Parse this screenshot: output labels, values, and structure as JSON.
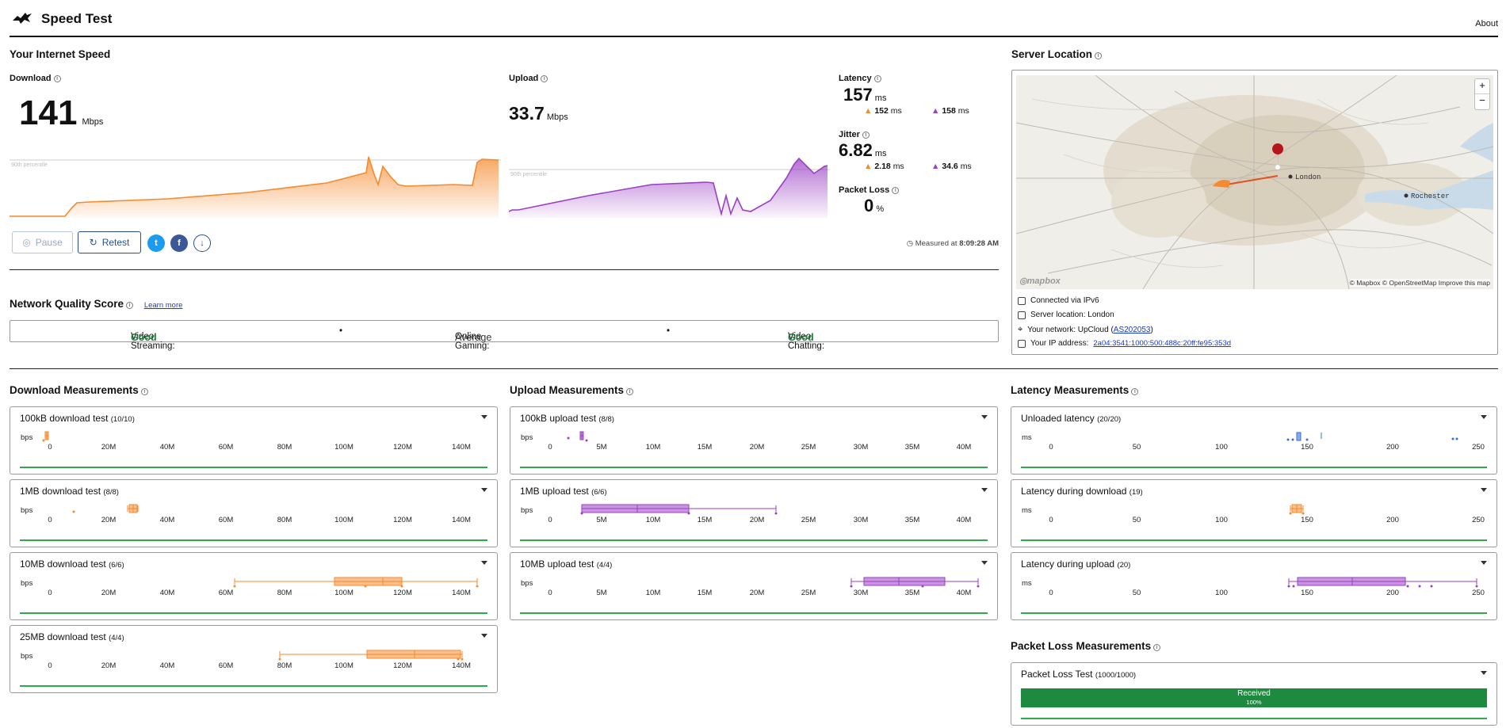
{
  "app": {
    "title": "Speed Test",
    "about": "About"
  },
  "speed": {
    "section_title": "Your Internet Speed",
    "download": {
      "label": "Download",
      "value": "141",
      "unit": "Mbps",
      "percentile_label": "90th percentile"
    },
    "upload": {
      "label": "Upload",
      "value": "33.7",
      "unit": "Mbps",
      "percentile_label": "90th percentile"
    },
    "latency": {
      "label": "Latency",
      "value": "157",
      "unit": "ms",
      "down": "152",
      "down_unit": "ms",
      "up": "158",
      "up_unit": "ms"
    },
    "jitter": {
      "label": "Jitter",
      "value": "6.82",
      "unit": "ms",
      "down": "2.18",
      "down_unit": "ms",
      "up": "34.6",
      "up_unit": "ms"
    },
    "packet_loss": {
      "label": "Packet Loss",
      "value": "0",
      "unit": "%"
    },
    "pause_label": "Pause",
    "retest_label": "Retest",
    "measured_label": "Measured at",
    "measured_time": "8:09:28 AM"
  },
  "quality": {
    "title": "Network Quality Score",
    "learn_more": "Learn more",
    "items": [
      {
        "label": "Video Streaming:",
        "value": "Good"
      },
      {
        "label": "Online Gaming:",
        "value": "Average"
      },
      {
        "label": "Video Chatting:",
        "value": "Good"
      }
    ],
    "separator": "•"
  },
  "server": {
    "title": "Server Location",
    "map_labels": {
      "london": "London",
      "rochester": "Rochester",
      "attribution": "© Mapbox © OpenStreetMap  Improve this map",
      "mapbox": "mapbox",
      "zoom_in": "+",
      "zoom_out": "−"
    },
    "connected": "Connected via IPv6",
    "location": "Server location: London",
    "network_label": "Your network: UpCloud (",
    "network_link": "AS202053",
    "network_close": ")",
    "ip_label": "Your IP address:",
    "ip_value": "2a04:3541:1000:500:488c:20ff:fe95:353d"
  },
  "download_measurements": {
    "title": "Download Measurements",
    "unit": "bps",
    "ticks": [
      "0",
      "20M",
      "40M",
      "60M",
      "80M",
      "100M",
      "120M",
      "140M"
    ],
    "tests": [
      {
        "name": "100kB download test",
        "count": "(10/10)"
      },
      {
        "name": "1MB download test",
        "count": "(8/8)"
      },
      {
        "name": "10MB download test",
        "count": "(6/6)"
      },
      {
        "name": "25MB download test",
        "count": "(4/4)"
      }
    ]
  },
  "upload_measurements": {
    "title": "Upload Measurements",
    "unit": "bps",
    "ticks": [
      "0",
      "5M",
      "10M",
      "15M",
      "20M",
      "25M",
      "30M",
      "35M",
      "40M"
    ],
    "tests": [
      {
        "name": "100kB upload test",
        "count": "(8/8)"
      },
      {
        "name": "1MB upload test",
        "count": "(6/6)"
      },
      {
        "name": "10MB upload test",
        "count": "(4/4)"
      }
    ]
  },
  "latency_measurements": {
    "title": "Latency Measurements",
    "unit": "ms",
    "ticks": [
      "0",
      "50",
      "100",
      "150",
      "200",
      "250"
    ],
    "tests": [
      {
        "name": "Unloaded latency",
        "count": "(20/20)"
      },
      {
        "name": "Latency during download",
        "count": "(19)"
      },
      {
        "name": "Latency during upload",
        "count": "(20)"
      }
    ]
  },
  "packet_loss_measurements": {
    "title": "Packet Loss Measurements",
    "test_name": "Packet Loss Test",
    "count": "(1000/1000)",
    "received_label": "Received",
    "received_pct": "100%"
  },
  "colors": {
    "download": "#f58a2e",
    "upload": "#9b3fc4",
    "latency": "#3a6fd8",
    "good": "#1e7d3a",
    "received": "#1d8a3f"
  }
}
